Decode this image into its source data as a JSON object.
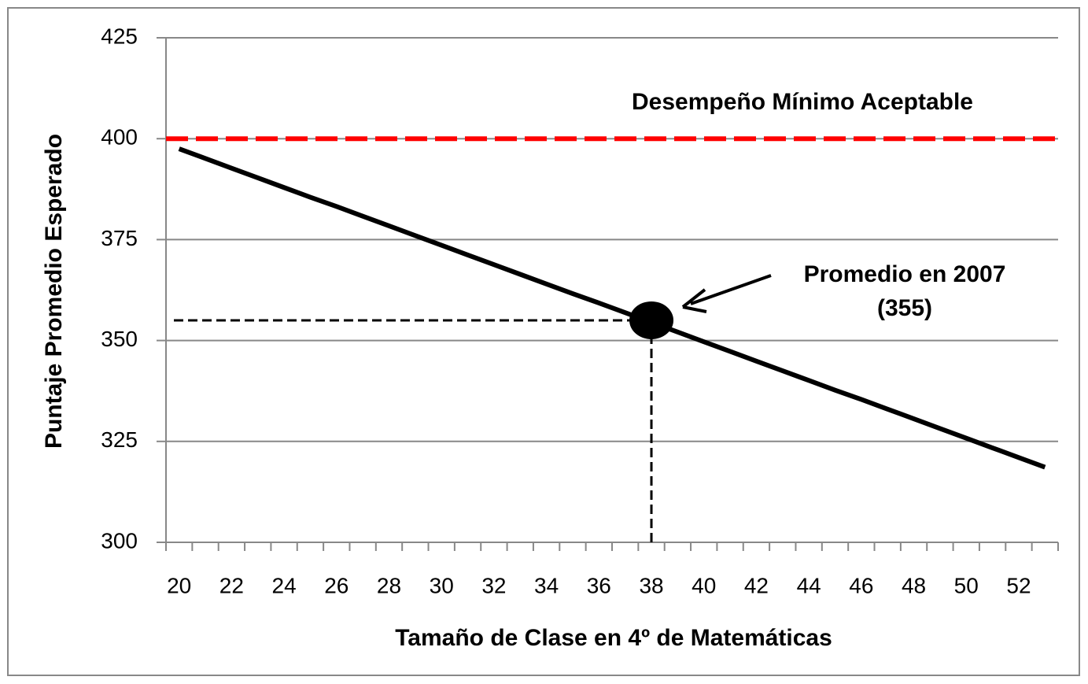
{
  "chart_data": {
    "type": "line",
    "x_label": "Tamaño de Clase en 4º de Matemáticas",
    "y_label": "Puntaje Promedio Esperado",
    "categories": [
      "20",
      null,
      "22",
      null,
      "24",
      null,
      "26",
      null,
      "28",
      null,
      "30",
      null,
      "32",
      null,
      "34",
      null,
      "36",
      null,
      "38",
      null,
      "40",
      null,
      "42",
      null,
      "44",
      null,
      "46",
      null,
      "48",
      null,
      "50",
      null,
      "52",
      null
    ],
    "series": [
      {
        "color": "#000000",
        "values": [
          397.5,
          395.1,
          392.7,
          390.3,
          387.9,
          385.5,
          383.2,
          380.8,
          378.4,
          376.0,
          373.6,
          371.2,
          368.8,
          366.4,
          364.0,
          361.6,
          359.3,
          356.9,
          354.5,
          352.1,
          349.7,
          347.3,
          344.9,
          342.5,
          340.1,
          337.7,
          335.4,
          333.0,
          330.6,
          328.2,
          325.8,
          323.4,
          321.0,
          318.6
        ]
      }
    ],
    "ylim": [
      300,
      425
    ],
    "yticks": [
      300,
      325,
      350,
      375,
      400,
      425
    ],
    "grid": true,
    "reference_line": {
      "value": 400,
      "label": "Desempeño Mínimo Aceptable",
      "color": "#ff0000"
    },
    "highlight": {
      "category": "38",
      "value": 355,
      "text": "Promedio en 2007",
      "value_label": "(355)"
    }
  }
}
